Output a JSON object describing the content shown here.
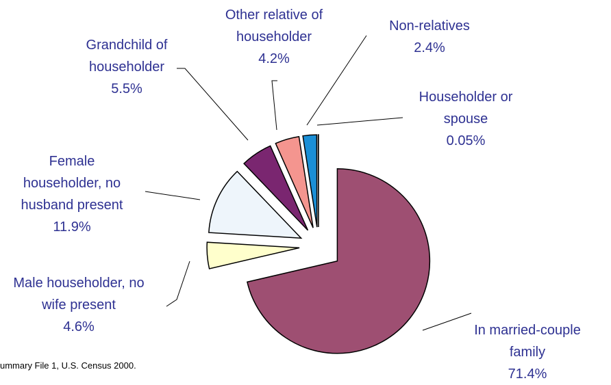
{
  "chart_data": {
    "type": "pie",
    "categories": [
      "In married-couple family",
      "Male householder, no wife present",
      "Female householder, no husband present",
      "Grandchild of householder",
      "Other relative of householder",
      "Non-relatives",
      "Householder or spouse"
    ],
    "values": [
      71.4,
      4.6,
      11.9,
      5.5,
      4.2,
      2.4,
      0.05
    ],
    "value_labels": [
      "71.4%",
      "4.6%",
      "11.9%",
      "5.5%",
      "4.2%",
      "2.4%",
      "0.05%"
    ],
    "colors": [
      "#9e4f72",
      "#ffffcc",
      "#eef5fb",
      "#7a2670",
      "#f4958f",
      "#1b8fd6",
      "#ffffff"
    ],
    "footnote": "ummary File 1, U.S. Census 2000."
  }
}
